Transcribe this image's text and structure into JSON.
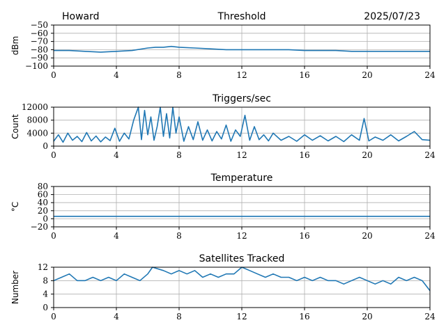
{
  "header": {
    "station": "Howard",
    "date": "2025/07/23"
  },
  "colors": {
    "line": "#1f77b4",
    "grid": "#b0b0b0",
    "axis": "#000000"
  },
  "chart_data": [
    {
      "type": "line",
      "title": "Threshold",
      "ylabel": "dBm",
      "xlim": [
        0,
        24
      ],
      "ylim": [
        -100,
        -50
      ],
      "xticks": [
        0,
        4,
        8,
        12,
        16,
        20,
        24
      ],
      "yticks": [
        -50,
        -60,
        -70,
        -80,
        -90,
        -100
      ],
      "ytick_labels": [
        "−50",
        "−60",
        "−70",
        "−80",
        "−90",
        "−100"
      ],
      "grid": true,
      "series": [
        {
          "x": [
            0,
            1,
            2,
            3,
            4,
            5,
            6,
            6.5,
            7,
            7.5,
            8,
            9,
            10,
            11,
            12,
            13,
            14,
            15,
            16,
            17,
            18,
            19,
            20,
            21,
            22,
            23,
            24
          ],
          "y": [
            -81,
            -81,
            -82,
            -83,
            -82,
            -81,
            -78,
            -77,
            -77,
            -76,
            -77,
            -78,
            -79,
            -80,
            -80,
            -80,
            -80,
            -80,
            -81,
            -81,
            -81,
            -82,
            -82,
            -82,
            -82,
            -82,
            -82
          ]
        }
      ]
    },
    {
      "type": "line",
      "title": "Triggers/sec",
      "ylabel": "Count",
      "xlim": [
        0,
        24
      ],
      "ylim": [
        0,
        12000
      ],
      "xticks": [
        0,
        4,
        8,
        12,
        16,
        20,
        24
      ],
      "yticks": [
        0,
        4000,
        8000,
        12000
      ],
      "ytick_labels": [
        "0",
        "4000",
        "8000",
        "12000"
      ],
      "grid": true,
      "series": [
        {
          "x": [
            0,
            0.3,
            0.6,
            0.9,
            1.2,
            1.5,
            1.8,
            2.1,
            2.4,
            2.7,
            3,
            3.3,
            3.6,
            3.9,
            4.2,
            4.5,
            4.8,
            5.1,
            5.4,
            5.6,
            5.8,
            6.0,
            6.2,
            6.4,
            6.6,
            6.8,
            7.0,
            7.2,
            7.4,
            7.6,
            7.8,
            8.0,
            8.3,
            8.6,
            8.9,
            9.2,
            9.5,
            9.8,
            10.1,
            10.4,
            10.7,
            11.0,
            11.3,
            11.6,
            11.9,
            12.2,
            12.5,
            12.8,
            13.1,
            13.4,
            13.7,
            14,
            14.5,
            15,
            15.5,
            16,
            16.5,
            17,
            17.5,
            18,
            18.5,
            19,
            19.5,
            19.8,
            20.1,
            20.5,
            21,
            21.5,
            22,
            22.5,
            23,
            23.5,
            24
          ],
          "y": [
            1500,
            3500,
            1200,
            4000,
            1800,
            3000,
            1400,
            4200,
            1600,
            3100,
            1300,
            2800,
            1700,
            5500,
            1500,
            4000,
            2200,
            8000,
            12000,
            2000,
            11000,
            3500,
            9000,
            1800,
            6000,
            12000,
            3000,
            10000,
            2500,
            12000,
            4000,
            9000,
            1500,
            6000,
            2000,
            7500,
            1800,
            5000,
            1600,
            4500,
            2200,
            6500,
            1500,
            5000,
            3000,
            9500,
            1800,
            6000,
            2000,
            3500,
            1600,
            4000,
            1800,
            3000,
            1500,
            3500,
            1800,
            3200,
            1600,
            3000,
            1400,
            3500,
            1800,
            8500,
            1600,
            2800,
            1800,
            3500,
            1600,
            3000,
            4500,
            2000,
            1800
          ]
        }
      ]
    },
    {
      "type": "line",
      "title": "Temperature",
      "ylabel": "°C",
      "xlim": [
        0,
        24
      ],
      "ylim": [
        -20,
        80
      ],
      "xticks": [
        0,
        4,
        8,
        12,
        16,
        20,
        24
      ],
      "yticks": [
        -20,
        0,
        20,
        40,
        60,
        80
      ],
      "ytick_labels": [
        "−20",
        "0",
        "20",
        "40",
        "60",
        "80"
      ],
      "grid": true,
      "series": [
        {
          "x": [
            0,
            24
          ],
          "y": [
            6,
            6
          ]
        }
      ]
    },
    {
      "type": "line",
      "title": "Satellites Tracked",
      "ylabel": "Number",
      "xlim": [
        0,
        24
      ],
      "ylim": [
        0,
        12
      ],
      "xticks": [
        0,
        4,
        8,
        12,
        16,
        20,
        24
      ],
      "yticks": [
        0,
        4,
        8,
        12
      ],
      "ytick_labels": [
        "0",
        "4",
        "8",
        "12"
      ],
      "grid": true,
      "series": [
        {
          "x": [
            0,
            0.5,
            1,
            1.5,
            2,
            2.5,
            3,
            3.5,
            4,
            4.5,
            5,
            5.5,
            6,
            6.3,
            7,
            7.5,
            8,
            8.5,
            9,
            9.5,
            10,
            10.5,
            11,
            11.5,
            12,
            12.5,
            13,
            13.5,
            14,
            14.5,
            15,
            15.5,
            16,
            16.5,
            17,
            17.5,
            18,
            18.5,
            19,
            19.5,
            20,
            20.5,
            21,
            21.5,
            22,
            22.5,
            23,
            23.5,
            24
          ],
          "y": [
            8,
            9,
            10,
            8,
            8,
            9,
            8,
            9,
            8,
            10,
            9,
            8,
            10,
            12,
            11,
            10,
            11,
            10,
            11,
            9,
            10,
            9,
            10,
            10,
            12,
            11,
            10,
            9,
            10,
            9,
            9,
            8,
            9,
            8,
            9,
            8,
            8,
            7,
            8,
            9,
            8,
            7,
            8,
            7,
            9,
            8,
            9,
            8,
            5
          ]
        }
      ]
    }
  ]
}
